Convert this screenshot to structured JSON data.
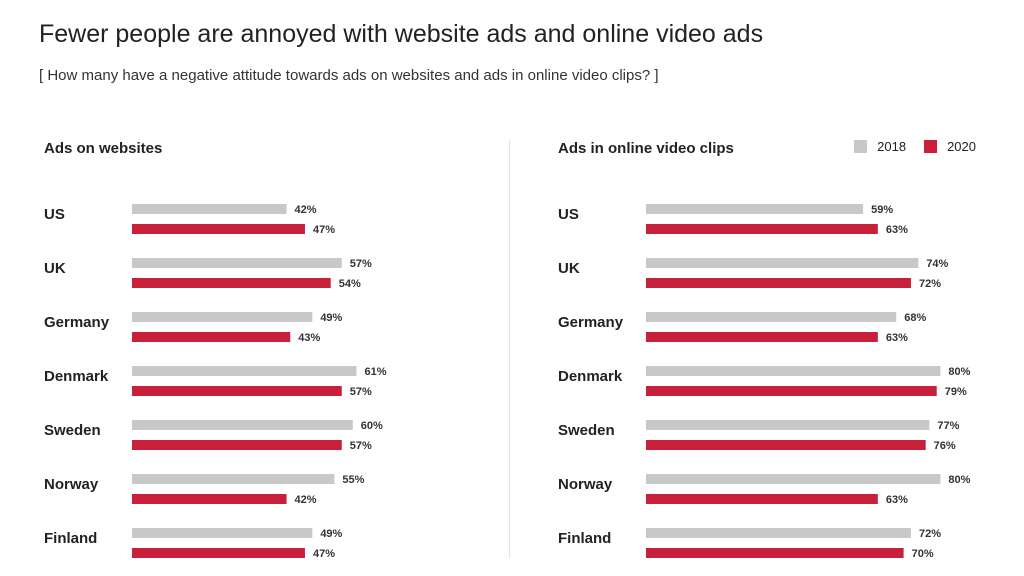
{
  "header": {
    "title": "Fewer people are annoyed with website ads and online video ads",
    "subtitle": "[ How many have a negative attitude towards ads on websites and ads in online video clips? ]"
  },
  "legend": {
    "items": [
      {
        "label": "2018",
        "color": "#c8c8c8"
      },
      {
        "label": "2020",
        "color": "#c8203a"
      }
    ]
  },
  "chart_data": [
    {
      "type": "bar",
      "orientation": "horizontal",
      "title": "Ads on websites",
      "categories": [
        "US",
        "UK",
        "Germany",
        "Denmark",
        "Sweden",
        "Norway",
        "Finland"
      ],
      "series": [
        {
          "name": "2018",
          "color": "#c8c8c8",
          "values": [
            42,
            57,
            49,
            61,
            60,
            55,
            49
          ]
        },
        {
          "name": "2020",
          "color": "#c8203a",
          "values": [
            47,
            54,
            43,
            57,
            57,
            42,
            47
          ]
        }
      ],
      "value_suffix": "%",
      "xlim": [
        0,
        100
      ],
      "grid": false
    },
    {
      "type": "bar",
      "orientation": "horizontal",
      "title": "Ads in online video clips",
      "categories": [
        "US",
        "UK",
        "Germany",
        "Denmark",
        "Sweden",
        "Norway",
        "Finland"
      ],
      "series": [
        {
          "name": "2018",
          "color": "#c8c8c8",
          "values": [
            59,
            74,
            68,
            80,
            77,
            80,
            72
          ]
        },
        {
          "name": "2020",
          "color": "#c8203a",
          "values": [
            63,
            72,
            63,
            79,
            76,
            63,
            70
          ]
        }
      ],
      "value_suffix": "%",
      "xlim": [
        0,
        100
      ],
      "grid": false
    }
  ]
}
